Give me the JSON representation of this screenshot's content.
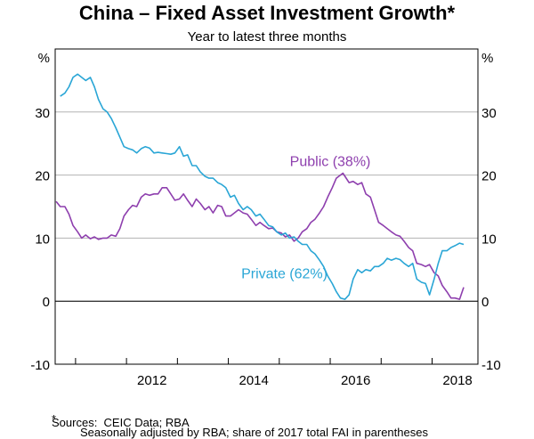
{
  "title": "China – Fixed Asset Investment Growth*",
  "subtitle": "Year to latest three months",
  "footnote": {
    "marker": "*",
    "text": "Seasonally adjusted by RBA; share of 2017 total FAI in parentheses"
  },
  "sources": "Sources:  CEIC Data; RBA",
  "colors": {
    "public": "#8e3fae",
    "private": "#2aa6d6",
    "grid": "#b3b3b3",
    "axis": "#000000"
  },
  "chart_data": {
    "type": "line",
    "title": "China – Fixed Asset Investment Growth*",
    "subtitle": "Year to latest three months",
    "y_unit_left": "%",
    "y_unit_right": "%",
    "ylim": [
      -10,
      40
    ],
    "yticks": [
      -10,
      0,
      10,
      20,
      30
    ],
    "ytick_labels": [
      "-10",
      "0",
      "10",
      "20",
      "30"
    ],
    "xlim": [
      2010.6,
      2018.9
    ],
    "xticks": [
      2012,
      2014,
      2016,
      2018
    ],
    "xtick_labels": [
      "2012",
      "2014",
      "2016",
      "2018"
    ],
    "grid": "horizontal",
    "series": [
      {
        "name": "Public (38%)",
        "label_text": "Public (38%)",
        "color": "#8e3fae",
        "points": [
          [
            2010.62,
            15.8
          ],
          [
            2010.7,
            15.0
          ],
          [
            2010.79,
            15.0
          ],
          [
            2010.87,
            13.8
          ],
          [
            2010.95,
            12.0
          ],
          [
            2011.04,
            11.0
          ],
          [
            2011.12,
            10.0
          ],
          [
            2011.2,
            10.5
          ],
          [
            2011.29,
            9.9
          ],
          [
            2011.37,
            10.2
          ],
          [
            2011.45,
            9.8
          ],
          [
            2011.54,
            10.0
          ],
          [
            2011.62,
            10.0
          ],
          [
            2011.7,
            10.5
          ],
          [
            2011.79,
            10.3
          ],
          [
            2011.87,
            11.5
          ],
          [
            2011.95,
            13.5
          ],
          [
            2012.04,
            14.5
          ],
          [
            2012.12,
            15.2
          ],
          [
            2012.2,
            15.0
          ],
          [
            2012.29,
            16.5
          ],
          [
            2012.37,
            17.0
          ],
          [
            2012.45,
            16.8
          ],
          [
            2012.54,
            17.0
          ],
          [
            2012.62,
            17.0
          ],
          [
            2012.7,
            18.0
          ],
          [
            2012.79,
            18.0
          ],
          [
            2012.87,
            17.0
          ],
          [
            2012.95,
            16.0
          ],
          [
            2013.04,
            16.2
          ],
          [
            2013.12,
            17.0
          ],
          [
            2013.2,
            16.0
          ],
          [
            2013.29,
            15.0
          ],
          [
            2013.37,
            16.2
          ],
          [
            2013.45,
            15.5
          ],
          [
            2013.54,
            14.5
          ],
          [
            2013.62,
            15.0
          ],
          [
            2013.7,
            14.0
          ],
          [
            2013.79,
            15.2
          ],
          [
            2013.87,
            15.0
          ],
          [
            2013.95,
            13.5
          ],
          [
            2014.04,
            13.5
          ],
          [
            2014.12,
            14.0
          ],
          [
            2014.2,
            14.5
          ],
          [
            2014.29,
            14.0
          ],
          [
            2014.37,
            13.8
          ],
          [
            2014.45,
            13.0
          ],
          [
            2014.54,
            12.0
          ],
          [
            2014.62,
            12.5
          ],
          [
            2014.7,
            12.0
          ],
          [
            2014.79,
            11.5
          ],
          [
            2014.87,
            11.6
          ],
          [
            2014.95,
            11.0
          ],
          [
            2015.04,
            10.8
          ],
          [
            2015.12,
            10.2
          ],
          [
            2015.2,
            10.5
          ],
          [
            2015.29,
            9.5
          ],
          [
            2015.37,
            10.0
          ],
          [
            2015.45,
            11.0
          ],
          [
            2015.54,
            11.5
          ],
          [
            2015.62,
            12.5
          ],
          [
            2015.7,
            13.0
          ],
          [
            2015.79,
            14.0
          ],
          [
            2015.87,
            15.0
          ],
          [
            2015.95,
            16.5
          ],
          [
            2016.04,
            18.0
          ],
          [
            2016.12,
            19.5
          ],
          [
            2016.2,
            20.0
          ],
          [
            2016.25,
            20.3
          ],
          [
            2016.29,
            19.8
          ],
          [
            2016.37,
            18.8
          ],
          [
            2016.45,
            19.0
          ],
          [
            2016.54,
            18.5
          ],
          [
            2016.62,
            18.8
          ],
          [
            2016.7,
            17.0
          ],
          [
            2016.79,
            16.5
          ],
          [
            2016.87,
            14.5
          ],
          [
            2016.95,
            12.5
          ],
          [
            2017.04,
            12.0
          ],
          [
            2017.12,
            11.5
          ],
          [
            2017.2,
            11.0
          ],
          [
            2017.29,
            10.5
          ],
          [
            2017.37,
            10.3
          ],
          [
            2017.45,
            9.5
          ],
          [
            2017.54,
            8.5
          ],
          [
            2017.62,
            8.0
          ],
          [
            2017.7,
            6.0
          ],
          [
            2017.79,
            5.8
          ],
          [
            2017.87,
            5.5
          ],
          [
            2017.95,
            5.8
          ],
          [
            2018.04,
            4.5
          ],
          [
            2018.12,
            4.0
          ],
          [
            2018.2,
            2.5
          ],
          [
            2018.29,
            1.5
          ],
          [
            2018.37,
            0.5
          ],
          [
            2018.45,
            0.5
          ],
          [
            2018.54,
            0.3
          ],
          [
            2018.62,
            2.2
          ]
        ]
      },
      {
        "name": "Private (62%)",
        "label_text": "Private (62%)",
        "color": "#2aa6d6",
        "points": [
          [
            2010.7,
            32.5
          ],
          [
            2010.79,
            33.0
          ],
          [
            2010.87,
            34.0
          ],
          [
            2010.95,
            35.5
          ],
          [
            2011.04,
            36.0
          ],
          [
            2011.12,
            35.5
          ],
          [
            2011.2,
            35.0
          ],
          [
            2011.29,
            35.5
          ],
          [
            2011.37,
            34.0
          ],
          [
            2011.45,
            32.0
          ],
          [
            2011.54,
            30.5
          ],
          [
            2011.62,
            30.0
          ],
          [
            2011.7,
            29.0
          ],
          [
            2011.79,
            27.5
          ],
          [
            2011.87,
            26.0
          ],
          [
            2011.95,
            24.5
          ],
          [
            2012.04,
            24.2
          ],
          [
            2012.12,
            24.0
          ],
          [
            2012.2,
            23.5
          ],
          [
            2012.29,
            24.2
          ],
          [
            2012.37,
            24.5
          ],
          [
            2012.45,
            24.3
          ],
          [
            2012.54,
            23.5
          ],
          [
            2012.62,
            23.6
          ],
          [
            2012.7,
            23.5
          ],
          [
            2012.79,
            23.4
          ],
          [
            2012.87,
            23.3
          ],
          [
            2012.95,
            23.5
          ],
          [
            2013.04,
            24.5
          ],
          [
            2013.12,
            23.0
          ],
          [
            2013.2,
            23.2
          ],
          [
            2013.29,
            21.5
          ],
          [
            2013.37,
            21.5
          ],
          [
            2013.45,
            20.5
          ],
          [
            2013.54,
            19.8
          ],
          [
            2013.62,
            19.5
          ],
          [
            2013.7,
            19.5
          ],
          [
            2013.79,
            18.8
          ],
          [
            2013.87,
            18.5
          ],
          [
            2013.95,
            18.0
          ],
          [
            2014.04,
            16.5
          ],
          [
            2014.12,
            16.8
          ],
          [
            2014.2,
            15.5
          ],
          [
            2014.29,
            14.5
          ],
          [
            2014.37,
            15.0
          ],
          [
            2014.45,
            14.5
          ],
          [
            2014.54,
            13.5
          ],
          [
            2014.62,
            13.8
          ],
          [
            2014.7,
            13.0
          ],
          [
            2014.79,
            12.0
          ],
          [
            2014.87,
            11.8
          ],
          [
            2014.95,
            11.0
          ],
          [
            2015.04,
            10.5
          ],
          [
            2015.12,
            10.8
          ],
          [
            2015.2,
            10.0
          ],
          [
            2015.29,
            10.2
          ],
          [
            2015.37,
            9.5
          ],
          [
            2015.45,
            9.0
          ],
          [
            2015.54,
            9.0
          ],
          [
            2015.62,
            8.0
          ],
          [
            2015.7,
            7.5
          ],
          [
            2015.79,
            6.5
          ],
          [
            2015.87,
            5.5
          ],
          [
            2015.95,
            4.0
          ],
          [
            2016.04,
            2.8
          ],
          [
            2016.12,
            1.5
          ],
          [
            2016.2,
            0.5
          ],
          [
            2016.29,
            0.3
          ],
          [
            2016.37,
            1.0
          ],
          [
            2016.45,
            3.5
          ],
          [
            2016.54,
            5.0
          ],
          [
            2016.62,
            4.5
          ],
          [
            2016.7,
            5.0
          ],
          [
            2016.79,
            4.8
          ],
          [
            2016.87,
            5.5
          ],
          [
            2016.95,
            5.5
          ],
          [
            2017.04,
            6.0
          ],
          [
            2017.12,
            6.8
          ],
          [
            2017.2,
            6.5
          ],
          [
            2017.29,
            6.8
          ],
          [
            2017.37,
            6.6
          ],
          [
            2017.45,
            6.0
          ],
          [
            2017.54,
            5.5
          ],
          [
            2017.62,
            6.0
          ],
          [
            2017.7,
            3.5
          ],
          [
            2017.79,
            3.0
          ],
          [
            2017.87,
            2.8
          ],
          [
            2017.95,
            1.0
          ],
          [
            2018.04,
            3.5
          ],
          [
            2018.12,
            6.0
          ],
          [
            2018.2,
            8.0
          ],
          [
            2018.29,
            8.0
          ],
          [
            2018.37,
            8.5
          ],
          [
            2018.45,
            8.8
          ],
          [
            2018.54,
            9.2
          ],
          [
            2018.62,
            9.0
          ]
        ]
      }
    ],
    "annotations": [
      {
        "series": "Public (38%)",
        "text": "Public (38%)",
        "x": 2016.0,
        "y": 22.3
      },
      {
        "series": "Private (62%)",
        "text": "Private (62%)",
        "x": 2015.1,
        "y": 4.5
      }
    ]
  }
}
